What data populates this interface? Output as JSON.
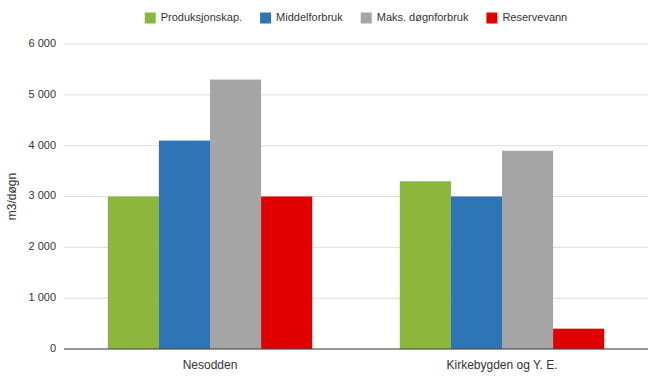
{
  "chart_data": {
    "type": "bar",
    "categories": [
      "Nesodden",
      "Kirkebygden og Y. E."
    ],
    "series": [
      {
        "name": "Produksjonskap.",
        "color": "#8CB63C",
        "values": [
          3000,
          3300
        ]
      },
      {
        "name": "Middelforbruk",
        "color": "#2E75B6",
        "values": [
          4100,
          3000
        ]
      },
      {
        "name": "Maks. døgnforbruk",
        "color": "#A5A5A5",
        "values": [
          5300,
          3900
        ]
      },
      {
        "name": "Reservevann",
        "color": "#E00000",
        "values": [
          3000,
          400
        ]
      }
    ],
    "ylabel": "m3/døgn",
    "ylim": [
      0,
      6000
    ],
    "yticks": [
      0,
      {
        "value": 1000,
        "label": "1 000"
      },
      {
        "value": 2000,
        "label": "2 000"
      },
      {
        "value": 3000,
        "label": "3 000"
      },
      {
        "value": 4000,
        "label": "4 000"
      },
      {
        "value": 5000,
        "label": "5 000"
      },
      {
        "value": 6000,
        "label": "6 000"
      }
    ],
    "grid": true,
    "legend": "top"
  }
}
